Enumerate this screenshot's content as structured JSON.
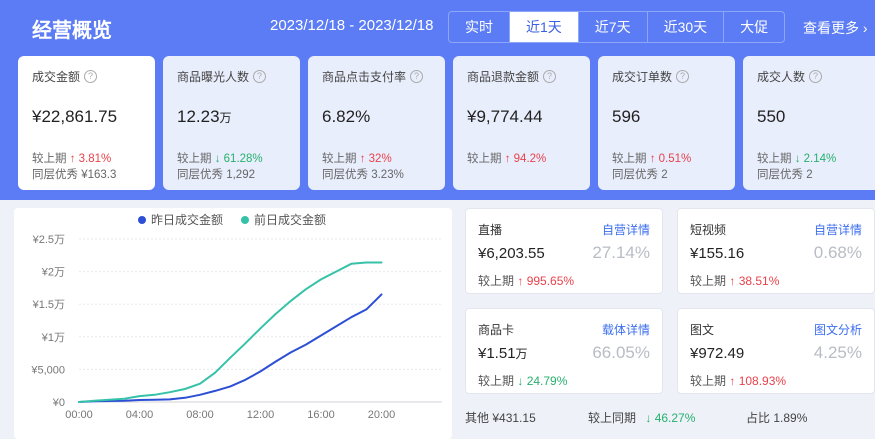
{
  "header": {
    "title": "经营概览",
    "date_range": "2023/12/18 - 2023/12/18",
    "tabs": [
      {
        "label": "实时",
        "active": false
      },
      {
        "label": "近1天",
        "active": true
      },
      {
        "label": "近7天",
        "active": false
      },
      {
        "label": "近30天",
        "active": false
      },
      {
        "label": "大促",
        "active": false
      }
    ],
    "more": "查看更多 ›"
  },
  "help_icon": "?",
  "metrics": [
    {
      "title": "成交金额",
      "value": "¥22,861.75",
      "unit": "",
      "cmp_label": "较上期",
      "arrow": "↑",
      "change": "3.81%",
      "trend": "up",
      "peer_label": "同层优秀",
      "peer": "¥163.3"
    },
    {
      "title": "商品曝光人数",
      "value": "12.23",
      "unit": "万",
      "cmp_label": "较上期",
      "arrow": "↓",
      "change": "61.28%",
      "trend": "down",
      "peer_label": "同层优秀",
      "peer": "1,292"
    },
    {
      "title": "商品点击支付率",
      "value": "6.82%",
      "unit": "",
      "cmp_label": "较上期",
      "arrow": "↑",
      "change": "32%",
      "trend": "up",
      "peer_label": "同层优秀",
      "peer": "3.23%"
    },
    {
      "title": "商品退款金额",
      "value": "¥9,774.44",
      "unit": "",
      "cmp_label": "较上期",
      "arrow": "↑",
      "change": "94.2%",
      "trend": "up",
      "peer_label": "",
      "peer": ""
    },
    {
      "title": "成交订单数",
      "value": "596",
      "unit": "",
      "cmp_label": "较上期",
      "arrow": "↑",
      "change": "0.51%",
      "trend": "up",
      "peer_label": "同层优秀",
      "peer": "2"
    },
    {
      "title": "成交人数",
      "value": "550",
      "unit": "",
      "cmp_label": "较上期",
      "arrow": "↓",
      "change": "2.14%",
      "trend": "down",
      "peer_label": "同层优秀",
      "peer": "2"
    }
  ],
  "chart_data": {
    "type": "line",
    "legend": [
      "昨日成交金额",
      "前日成交金额"
    ],
    "legend_position": "top",
    "x_ticks": [
      "00:00",
      "04:00",
      "08:00",
      "12:00",
      "16:00",
      "20:00"
    ],
    "y_ticks": [
      "¥0",
      "¥5,000",
      "¥1万",
      "¥1.5万",
      "¥2万",
      "¥2.5万"
    ],
    "ylim": [
      0,
      25000
    ],
    "xlim": [
      0,
      24
    ],
    "grid": true,
    "series": [
      {
        "name": "昨日成交金额",
        "color": "#2d4fd6",
        "x": [
          0,
          1,
          2,
          3,
          4,
          5,
          6,
          7,
          8,
          9,
          10,
          11,
          12,
          13,
          14,
          15,
          16,
          17,
          18,
          19,
          20
        ],
        "values": [
          0,
          100,
          150,
          200,
          300,
          350,
          400,
          650,
          1100,
          1700,
          2400,
          3400,
          4700,
          6200,
          7600,
          8800,
          10200,
          11600,
          13000,
          14200,
          16500
        ]
      },
      {
        "name": "前日成交金额",
        "color": "#36c2a8",
        "x": [
          0,
          1,
          2,
          3,
          4,
          5,
          6,
          7,
          8,
          9,
          10,
          11,
          12,
          13,
          14,
          15,
          16,
          17,
          18,
          19,
          20
        ],
        "values": [
          0,
          200,
          350,
          500,
          900,
          1100,
          1500,
          2000,
          2800,
          4500,
          6800,
          9000,
          11300,
          13500,
          15500,
          17300,
          18800,
          20000,
          21200,
          21400,
          21400
        ]
      }
    ]
  },
  "channels": [
    {
      "name": "直播",
      "link": "自营详情",
      "value": "¥6,203.55",
      "unit": "",
      "pct": "27.14%",
      "cmp_label": "较上期",
      "arrow": "↑",
      "change": "995.65%",
      "trend": "up"
    },
    {
      "name": "短视频",
      "link": "自营详情",
      "value": "¥155.16",
      "unit": "",
      "pct": "0.68%",
      "cmp_label": "较上期",
      "arrow": "↑",
      "change": "38.51%",
      "trend": "up"
    },
    {
      "name": "商品卡",
      "link": "载体详情",
      "value": "¥1.51",
      "unit": "万",
      "pct": "66.05%",
      "cmp_label": "较上期",
      "arrow": "↓",
      "change": "24.79%",
      "trend": "down"
    },
    {
      "name": "图文",
      "link": "图文分析",
      "value": "¥972.49",
      "unit": "",
      "pct": "4.25%",
      "cmp_label": "较上期",
      "arrow": "↑",
      "change": "108.93%",
      "trend": "up"
    }
  ],
  "footer": {
    "other_label": "其他",
    "other_value": "¥431.15",
    "cmp_label": "较上同期",
    "arrow": "↓",
    "change": "46.27%",
    "trend": "down",
    "share_label": "占比",
    "share_value": "1.89%"
  }
}
